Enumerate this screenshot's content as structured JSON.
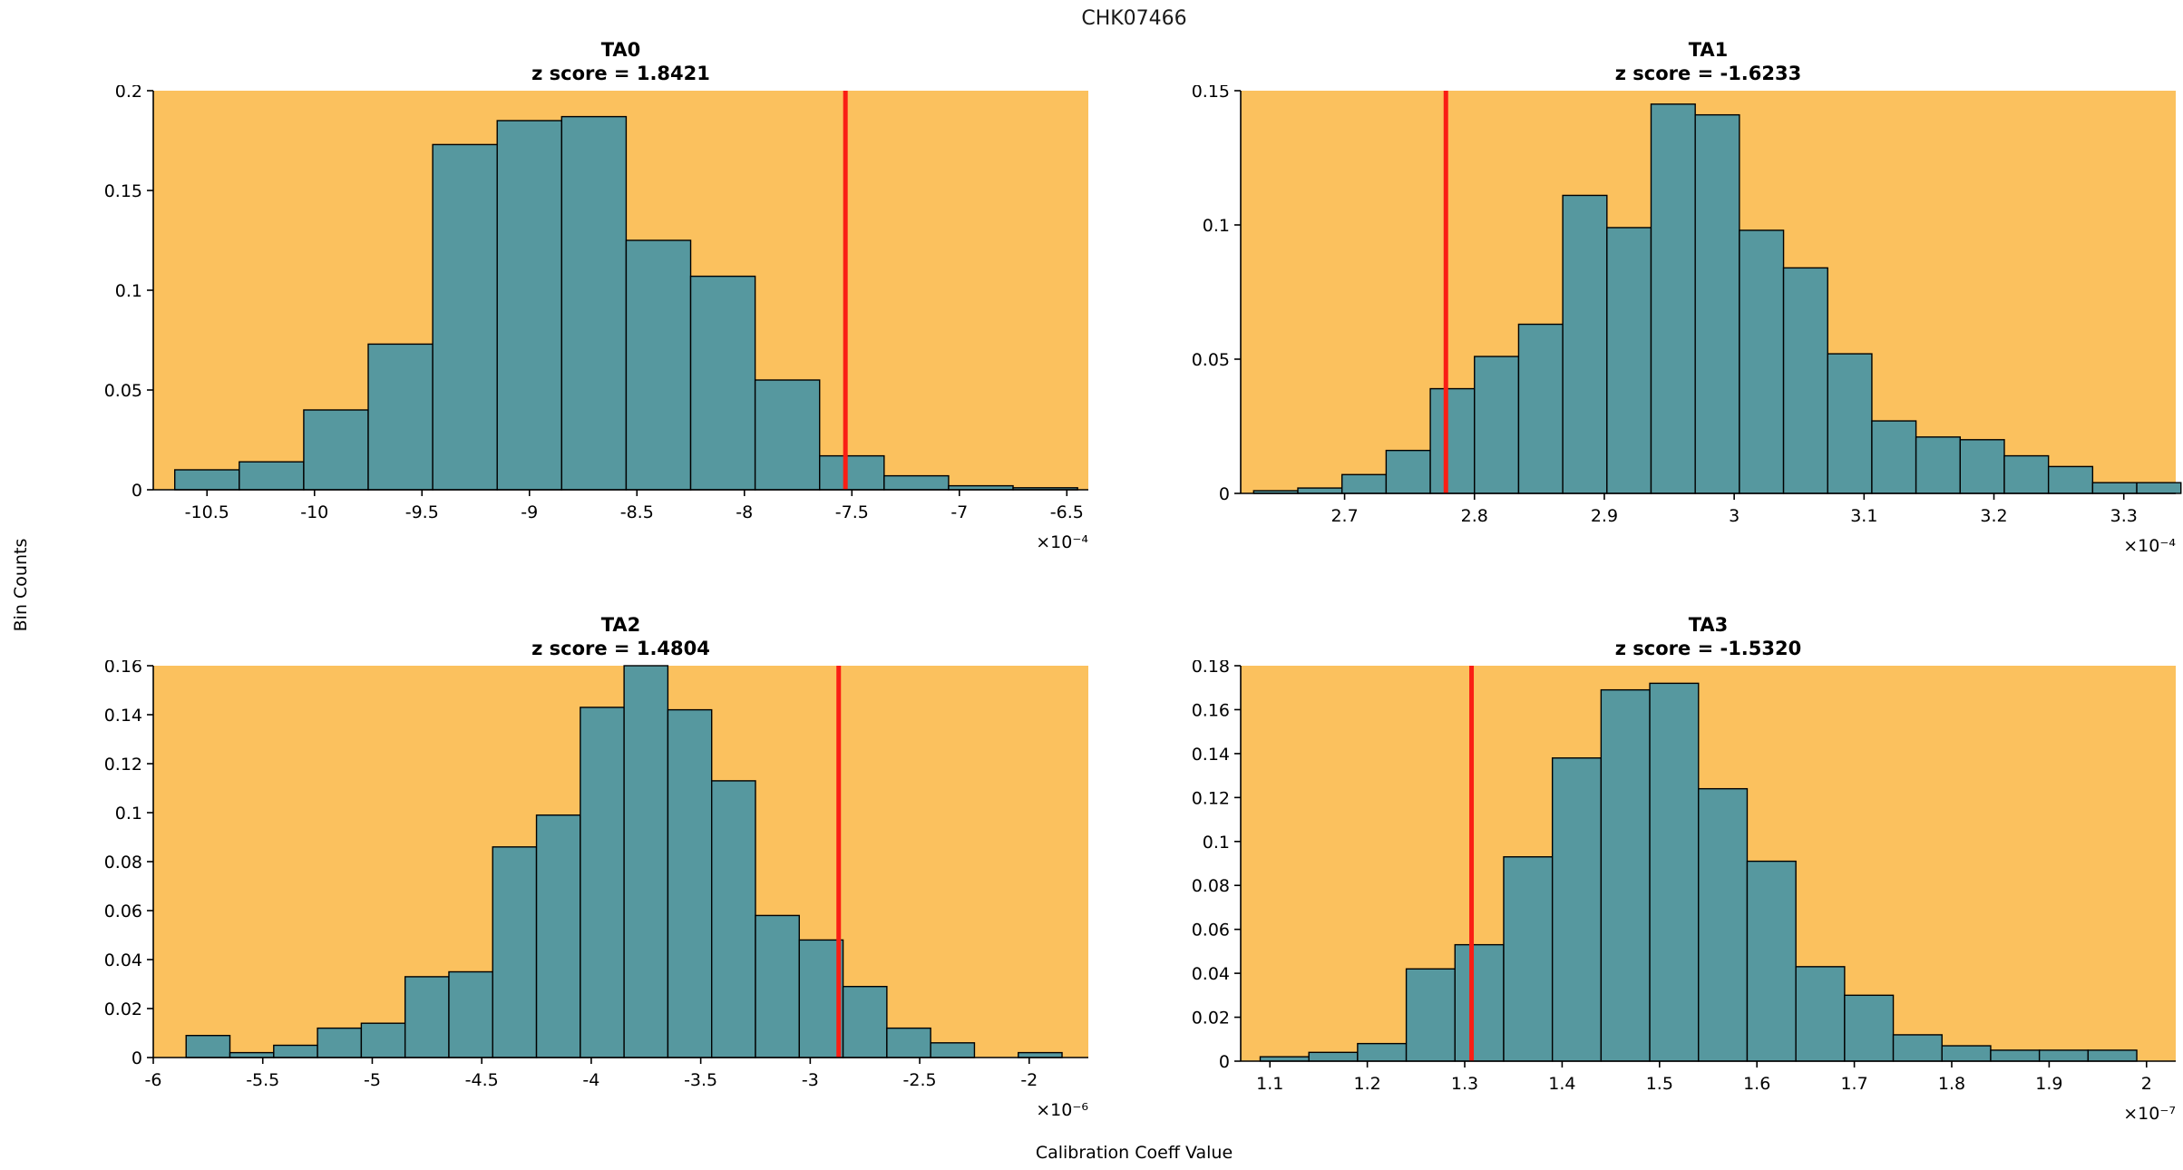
{
  "figure": {
    "title": "CHK07466",
    "ylabel": "Bin Counts",
    "xlabel": "Calibration Coeff Value"
  },
  "style": {
    "plot_bg": "#FBC15E",
    "bar_fill": "#56989F",
    "bar_stroke": "#000000",
    "red_line": "#FA1E14",
    "axis_color": "#000000"
  },
  "chart_data": [
    {
      "type": "bar",
      "subtype": "histogram",
      "title": "TA0",
      "subtitle": "z score = 1.8421",
      "z_score": 1.8421,
      "x_offset_label": "×10⁻⁴",
      "xlim": [
        -10.75,
        -6.4
      ],
      "ylim": [
        0,
        0.2
      ],
      "xticks": [
        -10.5,
        -10,
        -9.5,
        -9,
        -8.5,
        -8,
        -7.5,
        -7,
        -6.5
      ],
      "yticks": [
        0,
        0.05,
        0.1,
        0.15,
        0.2
      ],
      "bin_start": -10.65,
      "bin_width": 0.3,
      "values": [
        0.01,
        0.014,
        0.04,
        0.073,
        0.173,
        0.185,
        0.187,
        0.125,
        0.107,
        0.055,
        0.017,
        0.007,
        0.002,
        0.001
      ],
      "red_line_x": -7.53
    },
    {
      "type": "bar",
      "subtype": "histogram",
      "title": "TA1",
      "subtitle": "z score = -1.6233",
      "z_score": -1.6233,
      "x_offset_label": "×10⁻⁴",
      "xlim": [
        2.62,
        3.34
      ],
      "ylim": [
        0,
        0.15
      ],
      "xticks": [
        2.7,
        2.8,
        2.9,
        3,
        3.1,
        3.2,
        3.3
      ],
      "yticks": [
        0,
        0.05,
        0.1,
        0.15
      ],
      "bin_start": 2.63,
      "bin_width": 0.034,
      "values": [
        0.001,
        0.002,
        0.007,
        0.016,
        0.039,
        0.051,
        0.063,
        0.111,
        0.099,
        0.145,
        0.141,
        0.098,
        0.084,
        0.052,
        0.027,
        0.021,
        0.02,
        0.014,
        0.01,
        0.004,
        0.004
      ],
      "red_line_x": 2.778
    },
    {
      "type": "bar",
      "subtype": "histogram",
      "title": "TA2",
      "subtitle": "z score = 1.4804",
      "z_score": 1.4804,
      "x_offset_label": "×10⁻⁶",
      "xlim": [
        -6,
        -1.73
      ],
      "ylim": [
        0,
        0.16
      ],
      "xticks": [
        -6,
        -5.5,
        -5,
        -4.5,
        -4,
        -3.5,
        -3,
        -2.5,
        -2
      ],
      "yticks": [
        0,
        0.02,
        0.04,
        0.06,
        0.08,
        0.1,
        0.12,
        0.14,
        0.16
      ],
      "bin_start": -5.85,
      "bin_width": 0.2,
      "values": [
        0.009,
        0.002,
        0.005,
        0.012,
        0.014,
        0.033,
        0.035,
        0.086,
        0.099,
        0.143,
        0.16,
        0.142,
        0.113,
        0.058,
        0.048,
        0.029,
        0.012,
        0.006,
        0.0,
        0.002
      ],
      "red_line_x": -2.87
    },
    {
      "type": "bar",
      "subtype": "histogram",
      "title": "TA3",
      "subtitle": "z score = -1.5320",
      "z_score": -1.532,
      "x_offset_label": "×10⁻⁷",
      "xlim": [
        1.07,
        2.03
      ],
      "ylim": [
        0,
        0.18
      ],
      "xticks": [
        1.1,
        1.2,
        1.3,
        1.4,
        1.5,
        1.6,
        1.7,
        1.8,
        1.9,
        2
      ],
      "yticks": [
        0,
        0.02,
        0.04,
        0.06,
        0.08,
        0.1,
        0.12,
        0.14,
        0.16,
        0.18
      ],
      "bin_start": 1.09,
      "bin_width": 0.05,
      "values": [
        0.002,
        0.004,
        0.008,
        0.042,
        0.053,
        0.093,
        0.138,
        0.169,
        0.172,
        0.124,
        0.091,
        0.043,
        0.03,
        0.012,
        0.007,
        0.005,
        0.005,
        0.005
      ],
      "red_line_x": 1.307
    }
  ]
}
